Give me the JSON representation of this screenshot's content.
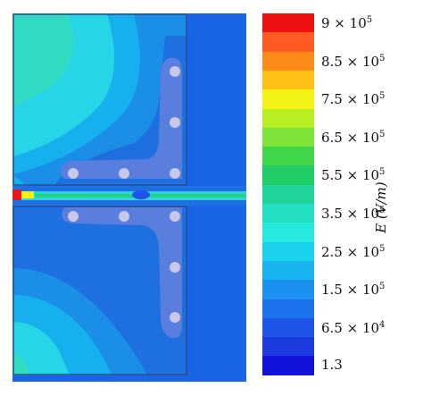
{
  "colorbar": {
    "quantity_label": "E (V/m)",
    "levels": [
      {
        "mantissa": "9 × 10",
        "exp": "5",
        "color": "#ee1111"
      },
      {
        "mantissa": "",
        "exp": "",
        "color": "#ff5a22"
      },
      {
        "mantissa": "8.5 × 10",
        "exp": "5",
        "color": "#ff8c18"
      },
      {
        "mantissa": "",
        "exp": "",
        "color": "#ffc116"
      },
      {
        "mantissa": "7.5 × 10",
        "exp": "5",
        "color": "#f2f214"
      },
      {
        "mantissa": "",
        "exp": "",
        "color": "#b8ee22"
      },
      {
        "mantissa": "6.5 × 10",
        "exp": "5",
        "color": "#7fe43a"
      },
      {
        "mantissa": "",
        "exp": "",
        "color": "#42d64a"
      },
      {
        "mantissa": "5.5 × 10",
        "exp": "5",
        "color": "#22cc66"
      },
      {
        "mantissa": "",
        "exp": "",
        "color": "#1fd39a"
      },
      {
        "mantissa": "3.5 × 10",
        "exp": "5",
        "color": "#22dfc2"
      },
      {
        "mantissa": "",
        "exp": "",
        "color": "#26e8dc"
      },
      {
        "mantissa": "2.5 × 10",
        "exp": "5",
        "color": "#1bd2ee"
      },
      {
        "mantissa": "",
        "exp": "",
        "color": "#18b4f0"
      },
      {
        "mantissa": "1.5 × 10",
        "exp": "5",
        "color": "#1b92f0"
      },
      {
        "mantissa": "",
        "exp": "",
        "color": "#1d72ee"
      },
      {
        "mantissa": "6.5 × 10",
        "exp": "4",
        "color": "#1e55e8"
      },
      {
        "mantissa": "",
        "exp": "",
        "color": "#1c3ce2"
      },
      {
        "mantissa": "1.3",
        "exp": "",
        "color": "#1212d8"
      }
    ]
  },
  "field_colors": {
    "cyan": "#27d6e6",
    "light_blue": "#17b0ee",
    "mid_blue": "#1b8ee8",
    "blue": "#1e6fe0",
    "deep_blue": "#2a55d8",
    "electrode": "#5a7ede",
    "hotspot": "#e41a1a",
    "green": "#2ccf7a"
  }
}
